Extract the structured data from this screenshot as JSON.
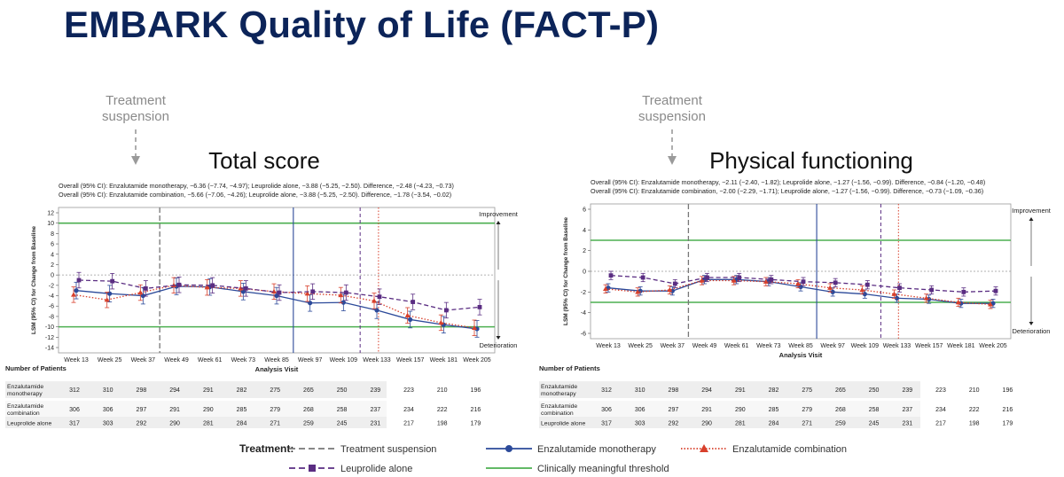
{
  "title": "EMBARK Quality of Life (FACT-P)",
  "chart_data": [
    {
      "type": "line",
      "title": "Total score",
      "annotation": "Treatment\nsuspension",
      "overall_lines": [
        "Overall (95% CI): Enzalutamide monotherapy, −6.36 (−7.74, −4.97); Leuprolide alone, −3.88 (−5.25, −2.50). Difference, −2.48 (−4.23, −0.73)",
        "Overall (95% CI): Enzalutamide combination, −5.66 (−7.06, −4.26); Leuprolide alone, −3.88 (−5.25, −2.50). Difference, −1.78 (−3.54, −0.02)"
      ],
      "ylabel": "LSM (95% CI) for Change from Baseline",
      "xlabel": "Analysis Visit",
      "ylim": [
        -14,
        12
      ],
      "yticks": [
        12,
        10,
        8,
        6,
        4,
        2,
        0,
        -2,
        -4,
        -6,
        -8,
        -10,
        -12,
        -14
      ],
      "categories": [
        "Week 13",
        "Week 25",
        "Week 37",
        "Week 49",
        "Week 61",
        "Week 73",
        "Week 85",
        "Week 97",
        "Week 109",
        "Week 133",
        "Week 157",
        "Week 181",
        "Week 205"
      ],
      "thresholds": [
        10,
        -10
      ],
      "improvement_label": "Improvement",
      "deterioration_label": "Deterioration",
      "vlines": {
        "suspension": 2,
        "monotherapy": 6,
        "leuprolide": 8,
        "combination": 8.55
      },
      "series": [
        {
          "name": "Enzalutamide monotherapy",
          "color": "#2c4a9a",
          "values": [
            -3.0,
            -3.6,
            -4.0,
            -2.2,
            -2.3,
            -3.2,
            -4.0,
            -5.4,
            -5.3,
            -6.8,
            -8.6,
            -9.6,
            -10.4
          ],
          "err": 1.6
        },
        {
          "name": "Enzalutamide combination",
          "color": "#d8402c",
          "values": [
            -3.8,
            -4.8,
            -3.4,
            -2.0,
            -2.4,
            -2.6,
            -3.2,
            -3.6,
            -3.9,
            -5.0,
            -7.8,
            -9.2,
            -10.2
          ],
          "err": 1.5
        },
        {
          "name": "Leuprolide alone",
          "color": "#5a2d82",
          "values": [
            -1.0,
            -1.2,
            -2.6,
            -1.9,
            -2.0,
            -2.6,
            -3.4,
            -3.2,
            -3.4,
            -4.2,
            -5.2,
            -6.8,
            -6.2
          ],
          "err": 1.5
        }
      ],
      "patients": {
        "heading": "Number of Patients",
        "rows": [
          {
            "label": "Enzalutamide\nmonotherapy",
            "values": [
              312,
              310,
              298,
              294,
              291,
              282,
              275,
              265,
              250,
              239,
              223,
              210,
              196
            ]
          },
          {
            "label": "Enzalutamide\ncombination",
            "values": [
              306,
              306,
              297,
              291,
              290,
              285,
              279,
              268,
              258,
              237,
              234,
              222,
              216
            ]
          },
          {
            "label": "Leuprolide alone",
            "values": [
              317,
              303,
              292,
              290,
              281,
              284,
              271,
              259,
              245,
              231,
              217,
              198,
              179
            ]
          }
        ]
      }
    },
    {
      "type": "line",
      "title": "Physical functioning",
      "annotation": "Treatment\nsuspension",
      "overall_lines": [
        "Overall (95% CI): Enzalutamide monotherapy, −2.11 (−2.40, −1.82); Leuprolide alone, −1.27 (−1.56, −0.99). Difference, −0.84 (−1.20, −0.48)",
        "Overall (95% CI): Enzalutamide combination, −2.00 (−2.29, −1.71); Leuprolide alone, −1.27 (−1.56, −0.99). Difference, −0.73 (−1.09, −0.36)"
      ],
      "ylabel": "LSM (95% CI) for Change from Baseline",
      "xlabel": "Analysis Visit",
      "ylim": [
        -6,
        6
      ],
      "yticks": [
        6,
        4,
        2,
        0,
        -2,
        -4,
        -6
      ],
      "categories": [
        "Week 13",
        "Week 25",
        "Week 37",
        "Week 49",
        "Week 61",
        "Week 73",
        "Week 85",
        "Week 97",
        "Week 109",
        "Week 133",
        "Week 157",
        "Week 181",
        "Week 205"
      ],
      "thresholds": [
        3,
        -3
      ],
      "improvement_label": "Improvement",
      "deterioration_label": "Deterioration",
      "vlines": {
        "suspension": 2,
        "monotherapy": 6,
        "leuprolide": 8,
        "combination": 8.55
      },
      "series": [
        {
          "name": "Enzalutamide monotherapy",
          "color": "#2c4a9a",
          "values": [
            -1.6,
            -1.9,
            -1.9,
            -0.8,
            -0.8,
            -1.0,
            -1.5,
            -2.0,
            -2.2,
            -2.6,
            -2.7,
            -3.1,
            -3.1
          ],
          "err": 0.4
        },
        {
          "name": "Enzalutamide combination",
          "color": "#d8402c",
          "values": [
            -1.7,
            -2.0,
            -1.8,
            -0.9,
            -0.9,
            -1.0,
            -1.2,
            -1.6,
            -1.8,
            -2.2,
            -2.6,
            -3.0,
            -3.2
          ],
          "err": 0.4
        },
        {
          "name": "Leuprolide alone",
          "color": "#5a2d82",
          "values": [
            -0.4,
            -0.6,
            -1.2,
            -0.6,
            -0.6,
            -0.8,
            -1.0,
            -1.1,
            -1.3,
            -1.6,
            -1.8,
            -2.0,
            -1.9
          ],
          "err": 0.4
        }
      ],
      "patients": {
        "heading": "Number of Patients",
        "rows": [
          {
            "label": "Enzalutamide\nmonotherapy",
            "values": [
              312,
              310,
              298,
              294,
              291,
              282,
              275,
              265,
              250,
              239,
              223,
              210,
              196
            ]
          },
          {
            "label": "Enzalutamide\ncombination",
            "values": [
              306,
              306,
              297,
              291,
              290,
              285,
              279,
              268,
              258,
              237,
              234,
              222,
              216
            ]
          },
          {
            "label": "Leuprolide alone",
            "values": [
              317,
              303,
              292,
              290,
              281,
              284,
              271,
              259,
              245,
              231,
              217,
              198,
              179
            ]
          }
        ]
      }
    }
  ],
  "legend": {
    "heading": "Treatment:",
    "items": [
      {
        "label": "Treatment suspension",
        "color": "#777777",
        "style": "dash"
      },
      {
        "label": "Enzalutamide monotherapy",
        "color": "#2c4a9a",
        "style": "solid-circle"
      },
      {
        "label": "Enzalutamide combination",
        "color": "#d8402c",
        "style": "dotted-triangle"
      },
      {
        "label": "Leuprolide alone",
        "color": "#5a2d82",
        "style": "dash-square"
      },
      {
        "label": "Clinically meaningful threshold",
        "color": "#4caf50",
        "style": "solid"
      }
    ]
  }
}
